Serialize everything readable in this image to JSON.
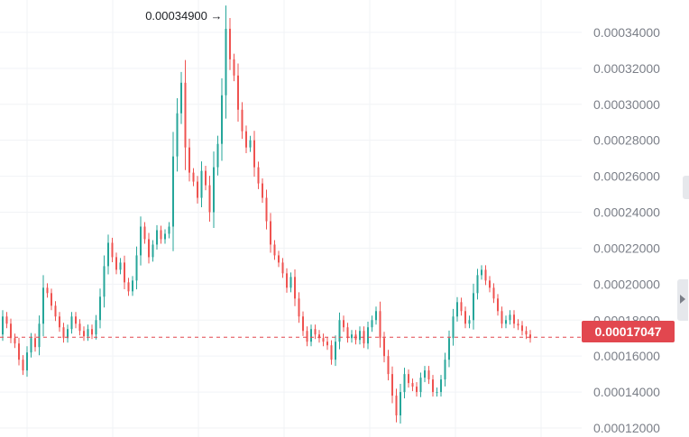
{
  "chart_data": {
    "type": "candlestick",
    "y_ticks": [
      "0.00012000",
      "0.00014000",
      "0.00016000",
      "0.00018000",
      "0.00020000",
      "0.00022000",
      "0.00024000",
      "0.00026000",
      "0.00028000",
      "0.00030000",
      "0.00032000",
      "0.00034000"
    ],
    "ylim": [
      0.000115,
      0.000358
    ],
    "grid": true,
    "high_annotation": {
      "value": 0.000349,
      "label": "0.00034900 →"
    },
    "current_price": {
      "value": 0.00017047,
      "label": "0.00017047"
    },
    "colors": {
      "up": "#26a69a",
      "down": "#ef5350",
      "grid": "#f1f3f6",
      "price_line": "#e2474f",
      "axis_text": "#7b7f88"
    },
    "close": [
      0.000182,
      0.000178,
      0.00017,
      0.000167,
      0.000158,
      0.000152,
      0.000162,
      0.00017,
      0.000165,
      0.000178,
      0.000198,
      0.000195,
      0.000188,
      0.000182,
      0.000176,
      0.00017,
      0.000175,
      0.000182,
      0.000178,
      0.000174,
      0.000171,
      0.000175,
      0.000172,
      0.00018,
      0.000193,
      0.00021,
      0.000223,
      0.000215,
      0.000208,
      0.000212,
      0.000201,
      0.000196,
      0.000202,
      0.000216,
      0.000232,
      0.000225,
      0.000215,
      0.000222,
      0.00023,
      0.000225,
      0.000228,
      0.000232,
      0.000271,
      0.000295,
      0.000312,
      0.000276,
      0.000262,
      0.000257,
      0.000248,
      0.000263,
      0.000255,
      0.00024,
      0.000265,
      0.000278,
      0.000305,
      0.000342,
      0.000325,
      0.000316,
      0.000297,
      0.000285,
      0.000276,
      0.00028,
      0.000265,
      0.000256,
      0.000248,
      0.000235,
      0.000222,
      0.000216,
      0.000212,
      0.000206,
      0.000198,
      0.000204,
      0.000192,
      0.000182,
      0.000174,
      0.000168,
      0.000175,
      0.000172,
      0.00017,
      0.000168,
      0.000166,
      0.000158,
      0.000168,
      0.00018,
      0.000176,
      0.00017,
      0.000172,
      0.000169,
      0.000174,
      0.000167,
      0.000176,
      0.00018,
      0.000185,
      0.00017,
      0.00016,
      0.00015,
      0.000138,
      0.000127,
      0.00014,
      0.00015,
      0.000145,
      0.000143,
      0.00014,
      0.000148,
      0.000152,
      0.000147,
      0.00014,
      0.00014,
      0.000147,
      0.000158,
      0.00017,
      0.000182,
      0.00019,
      0.000185,
      0.000178,
      0.00018,
      0.000195,
      0.000205,
      0.000208,
      0.000202,
      0.000198,
      0.000192,
      0.000185,
      0.000178,
      0.00018,
      0.000183,
      0.000178,
      0.000177,
      0.000174,
      0.000172,
      0.00017
    ],
    "open_first": 0.000172
  }
}
